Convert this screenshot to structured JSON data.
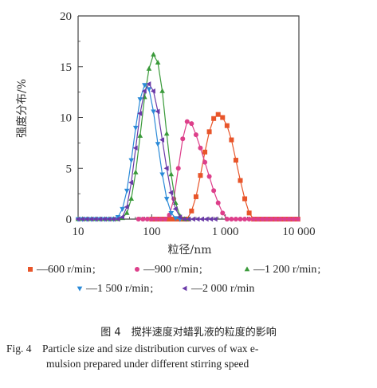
{
  "chart_data": {
    "type": "line",
    "xscale": "log",
    "xlim": [
      10,
      10000
    ],
    "ylim": [
      0,
      20
    ],
    "xlabel": "粒径/nm",
    "ylabel": "强度分布/%",
    "xtick_values": [
      10,
      100,
      1000,
      10000
    ],
    "xtick_labels": [
      "10",
      "100",
      "1 000",
      "10 000"
    ],
    "ytick_values": [
      0,
      5,
      10,
      15,
      20
    ],
    "ytick_labels": [
      "0",
      "5",
      "10",
      "15",
      "20"
    ],
    "grid": false,
    "legend_position": "bottom",
    "series": [
      {
        "name": "—600 r/min",
        "color": "#e8552a",
        "marker": "square",
        "x": [
          100,
          115,
          132,
          152,
          174,
          200,
          230,
          264,
          303,
          348,
          400,
          459,
          528,
          606,
          696,
          800,
          919,
          1056,
          1213,
          1393,
          1600,
          1838,
          2111,
          2425,
          2786,
          3200,
          3676,
          4223,
          4851,
          5572,
          6400,
          7352,
          8446,
          9702
        ],
        "y": [
          0,
          0,
          0,
          0,
          0,
          0,
          0,
          0,
          0,
          0.8,
          2.2,
          4.3,
          6.6,
          8.6,
          9.9,
          10.3,
          10.0,
          9.2,
          7.8,
          5.8,
          3.8,
          2.0,
          0.6,
          0,
          0,
          0,
          0,
          0,
          0,
          0,
          0,
          0,
          0,
          0
        ]
      },
      {
        "name": "—900 r/min",
        "color": "#dd3f8a",
        "marker": "circle",
        "x": [
          66,
          76,
          87,
          100,
          115,
          132,
          152,
          174,
          200,
          230,
          264,
          303,
          348,
          400,
          459,
          528,
          606,
          696,
          800,
          919,
          1056,
          1213,
          1393,
          1600,
          1838,
          2111,
          2425,
          2786,
          3200,
          3676,
          4223,
          4851,
          5572,
          6400,
          7352,
          8446,
          9702
        ],
        "y": [
          0,
          0,
          0,
          0,
          0,
          0,
          0,
          0.4,
          2.0,
          5.0,
          7.9,
          9.6,
          9.4,
          8.3,
          7.0,
          5.6,
          4.2,
          2.8,
          1.6,
          0.6,
          0,
          0,
          0,
          0,
          0,
          0,
          0,
          0,
          0,
          0,
          0,
          0,
          0,
          0,
          0,
          0,
          0
        ]
      },
      {
        "name": "—1 200 r/min",
        "color": "#3a9a3a",
        "marker": "triangle-up",
        "x": [
          10,
          11.5,
          13.2,
          15.2,
          17.4,
          20,
          23,
          26.4,
          30.3,
          34.8,
          40,
          46,
          52.8,
          60.6,
          69.6,
          80,
          91.9,
          105.6,
          121.3,
          139.3,
          160,
          183.8,
          211.1,
          242.5,
          278.6,
          320
        ],
        "y": [
          0,
          0,
          0,
          0,
          0,
          0,
          0,
          0,
          0,
          0,
          0.1,
          0.6,
          2.0,
          4.6,
          8.2,
          12.0,
          14.8,
          16.2,
          15.4,
          12.6,
          8.4,
          4.4,
          1.6,
          0.3,
          0,
          0
        ]
      },
      {
        "name": "—1 500 r/min",
        "color": "#2a8ad8",
        "marker": "triangle-down",
        "x": [
          10,
          11.5,
          13.2,
          15.2,
          17.4,
          20,
          23,
          26.4,
          30.3,
          34.8,
          40,
          46,
          52.8,
          60.6,
          69.6,
          80,
          91.9,
          105.6,
          121.3,
          139.3,
          160,
          183.8,
          211.1,
          242.5
        ],
        "y": [
          0,
          0,
          0,
          0,
          0,
          0,
          0,
          0,
          0,
          0.2,
          1.0,
          2.8,
          5.8,
          9.0,
          11.8,
          13.2,
          12.8,
          10.6,
          7.4,
          4.4,
          2.0,
          0.6,
          0.1,
          0
        ]
      },
      {
        "name": "—2 000 r/min",
        "color": "#6a3aa8",
        "marker": "triangle-left",
        "x": [
          10,
          11.5,
          13.2,
          15.2,
          17.4,
          20,
          23,
          26.4,
          30.3,
          34.8,
          40,
          46,
          52.8,
          60.6,
          69.6,
          80,
          91.9,
          105.6,
          121.3,
          139.3,
          160,
          183.8,
          211.1,
          242.5,
          278.6,
          320,
          367.6,
          422.3,
          485.1,
          557.2,
          640,
          735.2
        ],
        "y": [
          0,
          0,
          0,
          0,
          0,
          0,
          0,
          0,
          0,
          0,
          0.2,
          1.2,
          3.6,
          7.0,
          10.4,
          12.6,
          13.3,
          12.6,
          10.6,
          7.8,
          5.0,
          2.6,
          1.0,
          0.2,
          0,
          0,
          0,
          0,
          0,
          0,
          0,
          0
        ]
      }
    ]
  },
  "caption": {
    "cn": "图 4　搅拌速度对蜡乳液的粒度的影响",
    "en_line1": "Fig. 4　Particle size and size distribution curves of wax e-",
    "en_line2": "mulsion prepared under different stirring speed"
  }
}
